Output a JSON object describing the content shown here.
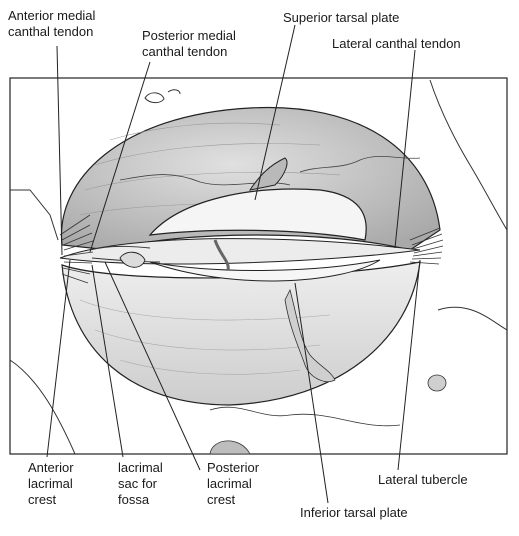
{
  "labels": {
    "anterior_medial_1": "Anterior medial",
    "anterior_medial_2": "canthal tendon",
    "posterior_medial_1": "Posterior medial",
    "posterior_medial_2": "canthal tendon",
    "superior_tarsal": "Superior tarsal plate",
    "lateral_canthal": "Lateral canthal tendon",
    "anterior_lacrimal_1": "Anterior",
    "anterior_lacrimal_2": "lacrimal",
    "anterior_lacrimal_3": "crest",
    "lacrimal_sac_1": "lacrimal",
    "lacrimal_sac_2": "sac for",
    "lacrimal_sac_3": "fossa",
    "posterior_lacrimal_1": "Posterior",
    "posterior_lacrimal_2": "lacrimal",
    "posterior_lacrimal_3": "crest",
    "lateral_tubercle": "Lateral tubercle",
    "inferior_tarsal": "Inferior tarsal plate"
  },
  "colors": {
    "globe": "#c9c9c9",
    "globe_light": "#e9e9e9",
    "plate": "#f3f3f3",
    "line": "#222222"
  }
}
